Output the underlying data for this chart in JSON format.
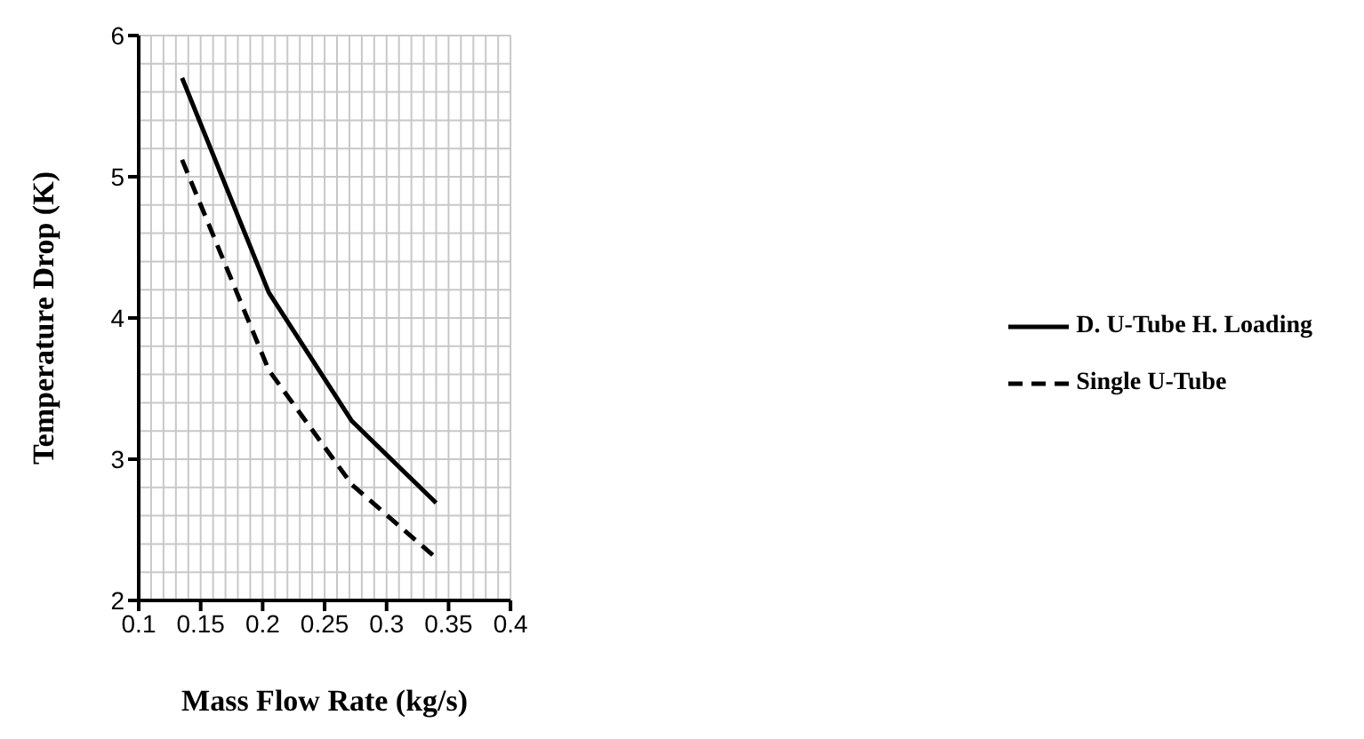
{
  "chart_data": {
    "type": "line",
    "xlabel": "Mass Flow Rate (kg/s)",
    "ylabel": "Temperature Drop (K)",
    "x": [
      0.135,
      0.205,
      0.272,
      0.34
    ],
    "series": [
      {
        "name": "D. U-Tube H. Loading",
        "color": "#000000",
        "values": [
          5.7,
          4.18,
          3.27,
          2.69
        ],
        "line_style": "solid"
      },
      {
        "name": "Single U-Tube",
        "color": "#000000",
        "values": [
          5.12,
          3.63,
          2.82,
          2.3
        ],
        "line_style": "dashed"
      }
    ],
    "xlim": [
      0.1,
      0.4
    ],
    "xticks": [
      0.1,
      0.15,
      0.2,
      0.25,
      0.3,
      0.35,
      0.4
    ],
    "ylim": [
      2,
      6
    ],
    "yticks": [
      2,
      3,
      4,
      5,
      6
    ],
    "grid": true,
    "legend": "right",
    "marker": "none"
  }
}
